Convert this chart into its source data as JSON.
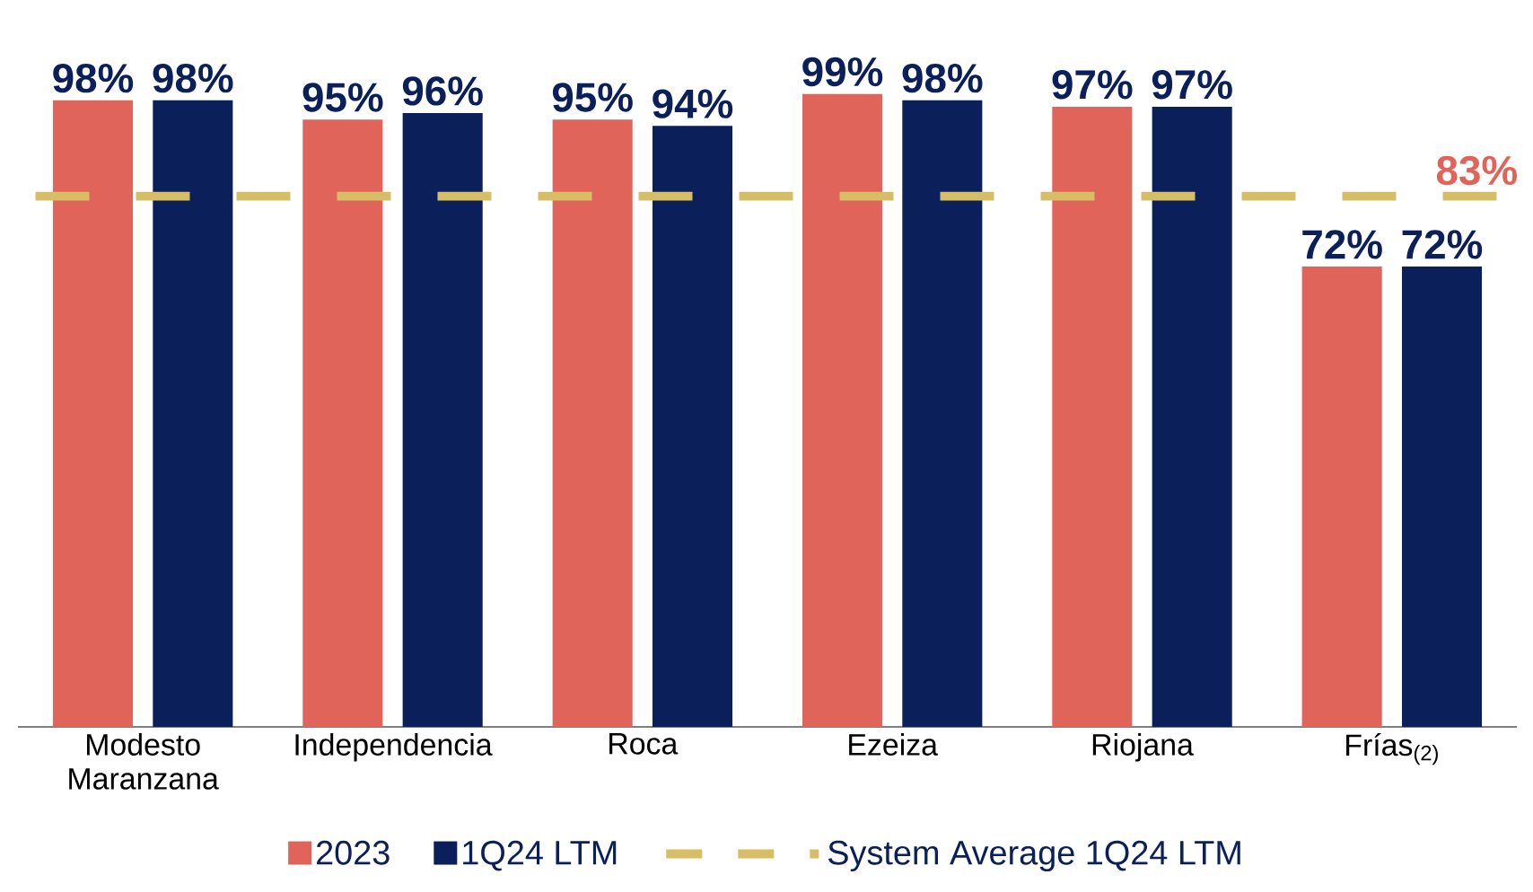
{
  "chart_data": {
    "type": "bar",
    "categories": [
      "Modesto Maranzana",
      "Independencia",
      "Roca",
      "Ezeiza",
      "Riojana",
      "Frías$_{(2)}$"
    ],
    "series": [
      {
        "name": "2023",
        "color": "#e0645a",
        "values": [
          98,
          95,
          95,
          99,
          97,
          72
        ],
        "value_labels": [
          "98%",
          "95%",
          "95%",
          "99%",
          "97%",
          "72%"
        ]
      },
      {
        "name": "1Q24 LTM",
        "color": "#0b1f5b",
        "values": [
          98,
          96,
          94,
          98,
          97,
          72
        ],
        "value_labels": [
          "98%",
          "96%",
          "94%",
          "98%",
          "97%",
          "72%"
        ]
      }
    ],
    "ref_lines": [
      {
        "axis": "y",
        "value": 83,
        "label": "System Average 1Q24 LTM",
        "color": "#d6bd66",
        "line_style": "dashed"
      }
    ],
    "annotations": [
      {
        "text": "83%",
        "y": 83
      }
    ],
    "legend": "bottom",
    "grid": false
  }
}
